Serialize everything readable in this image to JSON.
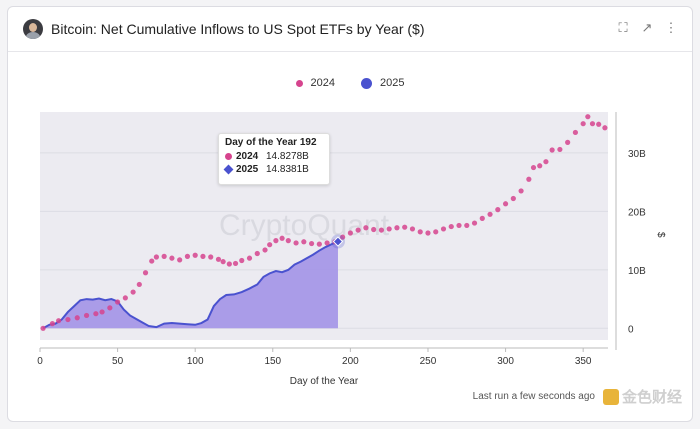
{
  "header": {
    "title": "Bitcoin: Net Cumulative Inflows to US Spot ETFs by Year ($)",
    "icons": [
      "expand-icon",
      "external-link-icon",
      "more-icon"
    ]
  },
  "colors": {
    "series_2024": "#d6448e",
    "series_2025": "#4a52cf",
    "area_2025": "#9f8ee6",
    "plot_bg": "#ecebf1"
  },
  "watermark": "CryptoQuant",
  "tooltip": {
    "title": "Day of the Year 192",
    "rows": [
      {
        "label": "2024",
        "value": "14.8278B"
      },
      {
        "label": "2025",
        "value": "14.8381B"
      }
    ]
  },
  "footer": {
    "last_run": "Last run a few seconds ago",
    "brand": "金色财经"
  },
  "chart_data": {
    "type": "line",
    "xlabel": "Day of the Year",
    "ylabel": "$",
    "xlim": [
      0,
      366
    ],
    "ylim": [
      -2,
      37
    ],
    "xticks": [
      0,
      50,
      100,
      150,
      200,
      250,
      300,
      350
    ],
    "yticks": [
      0,
      10,
      20,
      30
    ],
    "ytick_labels": [
      "0",
      "10B",
      "20B",
      "30B"
    ],
    "legend_position": "top",
    "series": [
      {
        "name": "2024",
        "style": "scatter-dots",
        "points": [
          [
            2,
            0
          ],
          [
            8,
            0.8
          ],
          [
            12,
            1.3
          ],
          [
            18,
            1.5
          ],
          [
            24,
            1.8
          ],
          [
            30,
            2.2
          ],
          [
            36,
            2.5
          ],
          [
            40,
            2.8
          ],
          [
            45,
            3.5
          ],
          [
            50,
            4.5
          ],
          [
            55,
            5.2
          ],
          [
            60,
            6.2
          ],
          [
            64,
            7.5
          ],
          [
            68,
            9.5
          ],
          [
            72,
            11.5
          ],
          [
            75,
            12.2
          ],
          [
            80,
            12.3
          ],
          [
            85,
            12.0
          ],
          [
            90,
            11.7
          ],
          [
            95,
            12.3
          ],
          [
            100,
            12.5
          ],
          [
            105,
            12.3
          ],
          [
            110,
            12.2
          ],
          [
            115,
            11.8
          ],
          [
            118,
            11.4
          ],
          [
            122,
            11.0
          ],
          [
            126,
            11.1
          ],
          [
            130,
            11.6
          ],
          [
            135,
            12.0
          ],
          [
            140,
            12.8
          ],
          [
            145,
            13.4
          ],
          [
            148,
            14.3
          ],
          [
            152,
            15.0
          ],
          [
            156,
            15.4
          ],
          [
            160,
            15.0
          ],
          [
            165,
            14.6
          ],
          [
            170,
            14.8
          ],
          [
            175,
            14.5
          ],
          [
            180,
            14.4
          ],
          [
            185,
            14.6
          ],
          [
            190,
            14.8
          ],
          [
            195,
            15.6
          ],
          [
            200,
            16.3
          ],
          [
            205,
            16.8
          ],
          [
            210,
            17.2
          ],
          [
            215,
            16.9
          ],
          [
            220,
            16.8
          ],
          [
            225,
            17.0
          ],
          [
            230,
            17.2
          ],
          [
            235,
            17.3
          ],
          [
            240,
            17.0
          ],
          [
            245,
            16.5
          ],
          [
            250,
            16.3
          ],
          [
            255,
            16.5
          ],
          [
            260,
            17.0
          ],
          [
            265,
            17.4
          ],
          [
            270,
            17.6
          ],
          [
            275,
            17.6
          ],
          [
            280,
            18.0
          ],
          [
            285,
            18.8
          ],
          [
            290,
            19.5
          ],
          [
            295,
            20.3
          ],
          [
            300,
            21.3
          ],
          [
            305,
            22.2
          ],
          [
            310,
            23.5
          ],
          [
            315,
            25.5
          ],
          [
            318,
            27.5
          ],
          [
            322,
            27.8
          ],
          [
            326,
            28.5
          ],
          [
            330,
            30.5
          ],
          [
            335,
            30.6
          ],
          [
            340,
            31.8
          ],
          [
            345,
            33.5
          ],
          [
            350,
            35.0
          ],
          [
            353,
            36.2
          ],
          [
            356,
            35.0
          ],
          [
            360,
            34.9
          ],
          [
            364,
            34.3
          ]
        ]
      },
      {
        "name": "2025",
        "style": "line-area",
        "points": [
          [
            2,
            0
          ],
          [
            6,
            0.6
          ],
          [
            10,
            0.8
          ],
          [
            14,
            1.5
          ],
          [
            18,
            2.8
          ],
          [
            22,
            3.8
          ],
          [
            26,
            4.8
          ],
          [
            30,
            5.0
          ],
          [
            34,
            4.9
          ],
          [
            38,
            5.1
          ],
          [
            42,
            4.8
          ],
          [
            46,
            5.0
          ],
          [
            50,
            4.6
          ],
          [
            54,
            3.2
          ],
          [
            58,
            2.2
          ],
          [
            62,
            1.6
          ],
          [
            66,
            1.0
          ],
          [
            70,
            0.4
          ],
          [
            75,
            0.2
          ],
          [
            80,
            0.8
          ],
          [
            85,
            0.9
          ],
          [
            90,
            0.8
          ],
          [
            95,
            0.7
          ],
          [
            100,
            0.6
          ],
          [
            104,
            0.9
          ],
          [
            108,
            1.5
          ],
          [
            112,
            3.8
          ],
          [
            116,
            5.0
          ],
          [
            120,
            5.7
          ],
          [
            125,
            5.8
          ],
          [
            130,
            6.2
          ],
          [
            135,
            6.8
          ],
          [
            140,
            7.5
          ],
          [
            144,
            8.8
          ],
          [
            148,
            9.4
          ],
          [
            152,
            9.8
          ],
          [
            156,
            9.6
          ],
          [
            160,
            10.0
          ],
          [
            164,
            10.9
          ],
          [
            168,
            11.4
          ],
          [
            172,
            12.0
          ],
          [
            176,
            12.6
          ],
          [
            180,
            13.3
          ],
          [
            184,
            13.9
          ],
          [
            188,
            14.4
          ],
          [
            192,
            14.8
          ]
        ]
      }
    ],
    "markers": [
      {
        "series": "2025",
        "x": 192,
        "y": 14.8381
      }
    ]
  }
}
